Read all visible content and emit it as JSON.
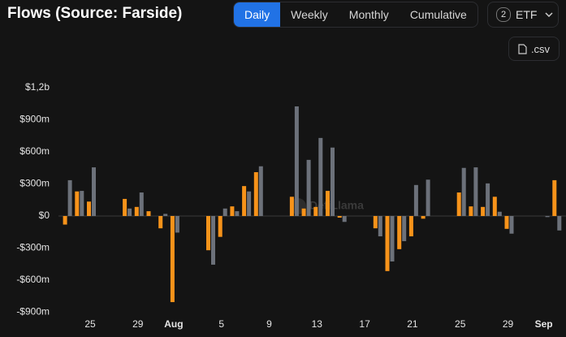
{
  "header": {
    "title": "Flows (Source: Farside)",
    "tabs": [
      "Daily",
      "Weekly",
      "Monthly",
      "Cumulative"
    ],
    "active_tab": 0,
    "filter_count": "2",
    "filter_label": "ETF",
    "download": ".csv"
  },
  "chart_data": {
    "type": "bar",
    "watermark": "DefiLlama",
    "categories": [
      null,
      null,
      "25",
      null,
      null,
      null,
      "29",
      null,
      null,
      "Aug",
      null,
      null,
      null,
      "5",
      null,
      null,
      null,
      "9",
      null,
      null,
      null,
      "13",
      null,
      null,
      null,
      "17",
      null,
      null,
      null,
      "21",
      null,
      null,
      null,
      "25",
      null,
      null,
      null,
      "29",
      null,
      null,
      "Sep",
      null
    ],
    "series": [
      {
        "color": "#f7931a",
        "values": [
          -80,
          230,
          135,
          0,
          0,
          160,
          85,
          45,
          -115,
          -805,
          0,
          0,
          -320,
          -195,
          90,
          280,
          410,
          0,
          0,
          180,
          70,
          85,
          235,
          -15,
          0,
          0,
          -115,
          -515,
          -310,
          -190,
          -25,
          0,
          0,
          220,
          90,
          85,
          180,
          -120,
          0,
          0,
          0,
          335
        ]
      },
      {
        "color": "#6c717a",
        "values": [
          335,
          235,
          455,
          0,
          0,
          70,
          220,
          0,
          20,
          -155,
          0,
          0,
          -455,
          70,
          45,
          230,
          465,
          0,
          0,
          1025,
          525,
          730,
          640,
          -55,
          0,
          0,
          -190,
          -425,
          -235,
          290,
          340,
          0,
          0,
          450,
          455,
          305,
          40,
          -165,
          0,
          0,
          -10,
          -135
        ]
      }
    ],
    "ylim": [
      -1050,
      1300
    ],
    "yticks": [
      {
        "value": 1200,
        "label": "$1,2b"
      },
      {
        "value": 900,
        "label": "$900m"
      },
      {
        "value": 600,
        "label": "$600m"
      },
      {
        "value": 300,
        "label": "$300m"
      },
      {
        "value": 0,
        "label": "$0"
      },
      {
        "value": -300,
        "label": "-$300m"
      },
      {
        "value": -600,
        "label": "-$600m"
      },
      {
        "value": -900,
        "label": "-$900m"
      }
    ]
  }
}
